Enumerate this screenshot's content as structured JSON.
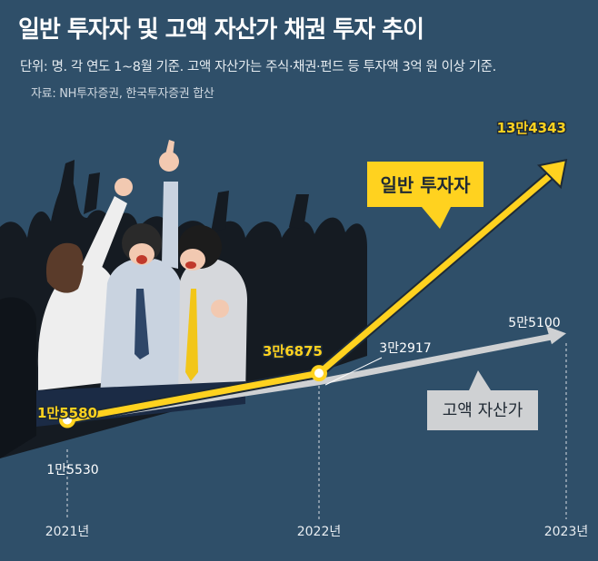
{
  "header": {
    "title": "일반 투자자 및 고액 자산가 채권 투자 추이",
    "subtitle": "단위: 명. 각 연도 1~8월 기준. 고액 자산가는 주식·채권·펀드 등 투자액 3억 원 이상 기준.",
    "source": "자료: NH투자증권, 한국투자증권 합산"
  },
  "colors": {
    "background": "#2f4f69",
    "general": "#ffd21f",
    "high_net_worth": "#cfd1d3",
    "text_light": "#ffffff"
  },
  "chart_data": {
    "type": "line",
    "title": "일반 투자자 및 고액 자산가 채권 투자 추이",
    "categories": [
      "2021년",
      "2022년",
      "2023년"
    ],
    "series": [
      {
        "name": "일반 투자자",
        "values": [
          15580,
          36875,
          134343
        ],
        "labels": [
          "1만5580",
          "3만6875",
          "13만4343"
        ]
      },
      {
        "name": "고액 자산가",
        "values": [
          15530,
          32917,
          55100
        ],
        "labels": [
          "1만5530",
          "3만2917",
          "5만5100"
        ]
      }
    ]
  }
}
